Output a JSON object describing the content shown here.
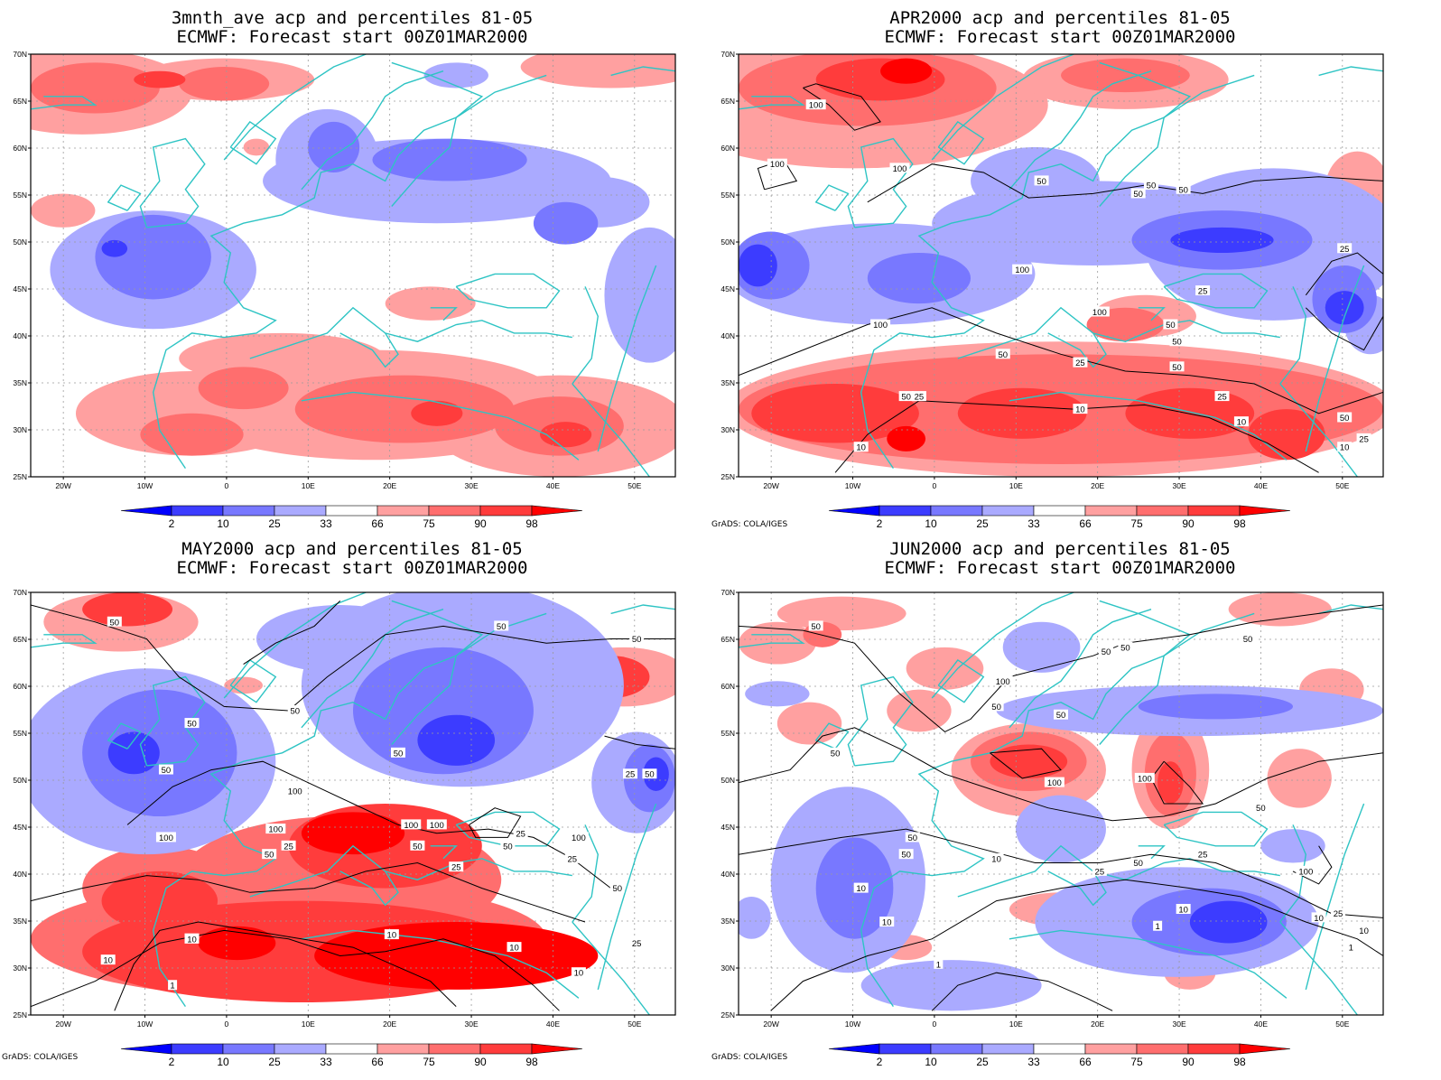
{
  "credit": "GrADS: COLA/IGES",
  "colorbar": {
    "labels": [
      "2",
      "10",
      "25",
      "33",
      "66",
      "75",
      "90",
      "98"
    ],
    "colors": [
      "#0000ff",
      "#3c3cff",
      "#7878ff",
      "#aaaaff",
      "#ffffff",
      "#ffa0a0",
      "#ff6e6e",
      "#ff3c3c",
      "#ff0000"
    ]
  },
  "axes": {
    "lon_labels": [
      "20W",
      "10W",
      "0",
      "10E",
      "20E",
      "30E",
      "40E",
      "50E"
    ],
    "lat_labels": [
      "70N",
      "65N",
      "60N",
      "55N",
      "50N",
      "45N",
      "40N",
      "35N",
      "30N",
      "25N"
    ]
  },
  "colors": {
    "coast": "#2ec4c4",
    "contour": "#000000",
    "grid": "#9a9a9a"
  },
  "panels": [
    {
      "title_line1": "3mnth_ave acp and percentiles 81-05",
      "title_line2": "ECMWF: Forecast start 00Z01MAR2000",
      "show_credit": false,
      "contour_labels": []
    },
    {
      "title_line1": "APR2000 acp and percentiles 81-05",
      "title_line2": "ECMWF: Forecast start 00Z01MAR2000",
      "show_credit": true,
      "contour_labels": [
        "100",
        "100",
        "100",
        "50",
        "50",
        "50",
        "50",
        "100",
        "25",
        "25",
        "100",
        "100",
        "50",
        "50",
        "50",
        "25",
        "50",
        "25",
        "50",
        "25",
        "10",
        "50",
        "10",
        "10",
        "25",
        "10"
      ]
    },
    {
      "title_line1": "MAY2000 acp and percentiles 81-05",
      "title_line2": "ECMWF: Forecast start 00Z01MAR2000",
      "show_credit": true,
      "contour_labels": [
        "50",
        "50",
        "50",
        "50",
        "50",
        "50",
        "50",
        "50",
        "25",
        "100",
        "100",
        "100",
        "100",
        "50",
        "25",
        "100",
        "25",
        "50",
        "25",
        "50",
        "25",
        "100",
        "50",
        "10",
        "25",
        "10",
        "10",
        "25",
        "10",
        "10",
        "1"
      ]
    },
    {
      "title_line1": "JUN2000 acp and percentiles 81-05",
      "title_line2": "ECMWF: Forecast start 00Z01MAR2000",
      "show_credit": true,
      "contour_labels": [
        "50",
        "50",
        "50",
        "50",
        "100",
        "50",
        "50",
        "50",
        "100",
        "100",
        "50",
        "50",
        "100",
        "50",
        "10",
        "25",
        "50",
        "25",
        "10",
        "10",
        "10",
        "10",
        "1",
        "1",
        "25",
        "10",
        "1"
      ]
    }
  ]
}
